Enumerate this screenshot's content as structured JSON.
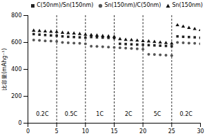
{
  "chart_data": {
    "type": "scatter",
    "ylabel": "比容量(mAhg⁻¹)",
    "xlim": [
      0,
      30
    ],
    "ylim": [
      0,
      800
    ],
    "xticks": [
      0,
      5,
      10,
      15,
      20,
      25,
      30
    ],
    "yticks": [
      0,
      200,
      400,
      600,
      800
    ],
    "legend": "upper right",
    "x": [
      1,
      2,
      3,
      4,
      5,
      6,
      7,
      8,
      9,
      10,
      11,
      12,
      13,
      14,
      15,
      16,
      17,
      18,
      19,
      20,
      21,
      22,
      23,
      24,
      25,
      26,
      27,
      28,
      29,
      30
    ],
    "series": [
      {
        "name": "C(50nm)/Sn(150nm)",
        "color": "#222222",
        "marker": "square",
        "values": [
          662,
          658,
          655,
          652,
          650,
          645,
          642,
          640,
          638,
          635,
          640,
          638,
          636,
          634,
          632,
          590,
          588,
          586,
          584,
          582,
          580,
          578,
          576,
          574,
          572,
          645,
          642,
          640,
          638,
          635
        ]
      },
      {
        "name": "Sn(150nm)/C(50nm)",
        "color": "#555555",
        "marker": "circle",
        "values": [
          618,
          615,
          612,
          610,
          608,
          600,
          598,
          595,
          593,
          590,
          572,
          570,
          568,
          565,
          563,
          560,
          558,
          555,
          552,
          550,
          512,
          510,
          508,
          505,
          502,
          600,
          598,
          595,
          593,
          590
        ]
      },
      {
        "name": "Sn(150nm)",
        "color": "#111111",
        "marker": "triangle",
        "values": [
          688,
          685,
          682,
          680,
          678,
          672,
          670,
          667,
          663,
          658,
          655,
          652,
          648,
          645,
          642,
          625,
          620,
          618,
          614,
          610,
          608,
          604,
          600,
          596,
          592,
          728,
          718,
          708,
          700,
          692
        ]
      }
    ],
    "vlines": [
      5,
      10,
      15,
      20,
      25
    ],
    "annotations": [
      {
        "text": "0.2C",
        "x": 2.5,
        "y": 55
      },
      {
        "text": "0.5C",
        "x": 7.5,
        "y": 55
      },
      {
        "text": "1C",
        "x": 12.5,
        "y": 55
      },
      {
        "text": "2C",
        "x": 17.5,
        "y": 55
      },
      {
        "text": "5C",
        "x": 22.5,
        "y": 55
      },
      {
        "text": "0.2C",
        "x": 27.5,
        "y": 55
      }
    ]
  }
}
